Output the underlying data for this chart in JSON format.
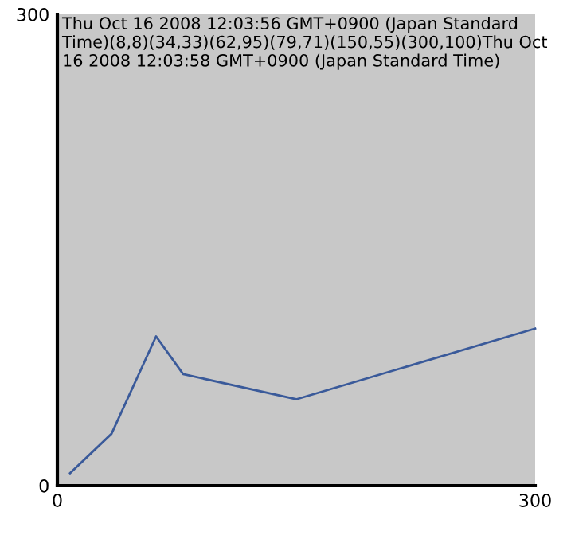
{
  "chart_data": {
    "type": "line",
    "x": [
      8,
      34,
      62,
      79,
      150,
      300
    ],
    "series": [
      {
        "color": "#3a5a9a",
        "values": [
          8,
          33,
          95,
          71,
          55,
          100
        ]
      }
    ],
    "xlim": [
      0,
      300
    ],
    "ylim": [
      0,
      300
    ],
    "xticks": [
      0,
      300
    ],
    "yticks": [
      0,
      300
    ],
    "grid": false,
    "legend": false,
    "marker": "none",
    "line_style": "solid",
    "annotations": [
      "Thu Oct 16 2008 12:03:56 GMT+0900 (Japan Standard Time)(8,8)(34,33)(62,95)(79,71)(150,55)(300,100)Thu Oct 16 2008 12:03:58 GMT+0900 (Japan Standard Time)"
    ]
  }
}
